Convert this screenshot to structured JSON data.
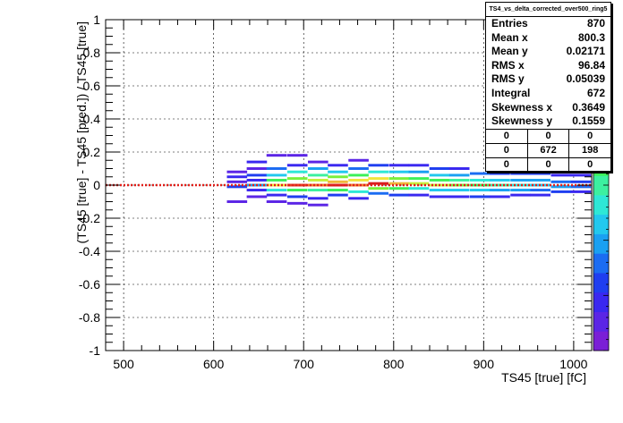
{
  "chart_data": {
    "type": "heatmap",
    "title": "",
    "xlabel": "TS45 [true] [fC]",
    "ylabel": "(TS45 [true] - TS45 [pred.]) / TS45 [true]",
    "xlim": [
      480,
      1020
    ],
    "ylim": [
      -1,
      1
    ],
    "x_ticks": [
      {
        "v": 500,
        "label": "500"
      },
      {
        "v": 600,
        "label": "600"
      },
      {
        "v": 700,
        "label": "700"
      },
      {
        "v": 800,
        "label": "800"
      },
      {
        "v": 900,
        "label": "900"
      },
      {
        "v": 1000,
        "label": "1000"
      }
    ],
    "y_ticks": [
      {
        "v": 1,
        "label": "1"
      },
      {
        "v": 0.8,
        "label": "0.8"
      },
      {
        "v": 0.6,
        "label": "0.6"
      },
      {
        "v": 0.4,
        "label": "0.4"
      },
      {
        "v": 0.2,
        "label": "0.2"
      },
      {
        "v": 0,
        "label": "0"
      },
      {
        "v": -0.2,
        "label": "-0.2"
      },
      {
        "v": -0.4,
        "label": "-0.4"
      },
      {
        "v": -0.6,
        "label": "-0.6"
      },
      {
        "v": -0.8,
        "label": "-0.8"
      },
      {
        "v": -1,
        "label": "-1"
      }
    ],
    "grid": true,
    "reference_line": {
      "y": 0,
      "color": "#e0201b",
      "style": "dotted"
    },
    "bin_width_x": 22.5,
    "bin_height_y": 0.016,
    "colors": [
      "#7a1fd6",
      "#5b25e6",
      "#3a28f0",
      "#1f3ef0",
      "#1b6cf2",
      "#1aa0f2",
      "#22c8ee",
      "#2ee8d6",
      "#3cf0a0",
      "#3cf05a",
      "#7af03c",
      "#c8f03c",
      "#f0e63c",
      "#f0b83c",
      "#f07c2a",
      "#e63c1f",
      "#d81e1e"
    ],
    "bins": [
      {
        "x": 626,
        "y": 0.08,
        "c": 1
      },
      {
        "x": 626,
        "y": 0.05,
        "c": 2
      },
      {
        "x": 626,
        "y": 0.02,
        "c": 1
      },
      {
        "x": 626,
        "y": -0.01,
        "c": 3
      },
      {
        "x": 626,
        "y": -0.1,
        "c": 1
      },
      {
        "x": 648,
        "y": 0.14,
        "c": 2
      },
      {
        "x": 648,
        "y": 0.1,
        "c": 1
      },
      {
        "x": 648,
        "y": 0.06,
        "c": 3
      },
      {
        "x": 648,
        "y": 0.03,
        "c": 2
      },
      {
        "x": 648,
        "y": 0.0,
        "c": 5
      },
      {
        "x": 648,
        "y": -0.03,
        "c": 2
      },
      {
        "x": 648,
        "y": -0.07,
        "c": 1
      },
      {
        "x": 670,
        "y": 0.18,
        "c": 1
      },
      {
        "x": 670,
        "y": 0.1,
        "c": 4
      },
      {
        "x": 670,
        "y": 0.06,
        "c": 6
      },
      {
        "x": 670,
        "y": 0.03,
        "c": 9
      },
      {
        "x": 670,
        "y": 0.0,
        "c": 12
      },
      {
        "x": 670,
        "y": -0.03,
        "c": 7
      },
      {
        "x": 670,
        "y": -0.06,
        "c": 2
      },
      {
        "x": 670,
        "y": -0.1,
        "c": 1
      },
      {
        "x": 693,
        "y": 0.18,
        "c": 1
      },
      {
        "x": 693,
        "y": 0.12,
        "c": 2
      },
      {
        "x": 693,
        "y": 0.08,
        "c": 7
      },
      {
        "x": 693,
        "y": 0.04,
        "c": 10
      },
      {
        "x": 693,
        "y": 0.0,
        "c": 15
      },
      {
        "x": 693,
        "y": -0.03,
        "c": 9
      },
      {
        "x": 693,
        "y": -0.07,
        "c": 3
      },
      {
        "x": 693,
        "y": -0.11,
        "c": 1
      },
      {
        "x": 716,
        "y": 0.14,
        "c": 1
      },
      {
        "x": 716,
        "y": 0.1,
        "c": 5
      },
      {
        "x": 716,
        "y": 0.06,
        "c": 8
      },
      {
        "x": 716,
        "y": 0.03,
        "c": 11
      },
      {
        "x": 716,
        "y": 0.0,
        "c": 14
      },
      {
        "x": 716,
        "y": -0.03,
        "c": 8
      },
      {
        "x": 716,
        "y": -0.08,
        "c": 2
      },
      {
        "x": 716,
        "y": -0.12,
        "c": 1
      },
      {
        "x": 738,
        "y": 0.12,
        "c": 2
      },
      {
        "x": 738,
        "y": 0.08,
        "c": 6
      },
      {
        "x": 738,
        "y": 0.05,
        "c": 10
      },
      {
        "x": 738,
        "y": 0.02,
        "c": 13
      },
      {
        "x": 738,
        "y": 0.0,
        "c": 16
      },
      {
        "x": 738,
        "y": -0.03,
        "c": 9
      },
      {
        "x": 738,
        "y": -0.06,
        "c": 3
      },
      {
        "x": 761,
        "y": 0.15,
        "c": 1
      },
      {
        "x": 761,
        "y": 0.1,
        "c": 4
      },
      {
        "x": 761,
        "y": 0.06,
        "c": 9
      },
      {
        "x": 761,
        "y": 0.03,
        "c": 12
      },
      {
        "x": 761,
        "y": 0.0,
        "c": 14
      },
      {
        "x": 761,
        "y": -0.04,
        "c": 7
      },
      {
        "x": 761,
        "y": -0.08,
        "c": 2
      },
      {
        "x": 783,
        "y": 0.12,
        "c": 3
      },
      {
        "x": 783,
        "y": 0.08,
        "c": 7
      },
      {
        "x": 783,
        "y": 0.04,
        "c": 12
      },
      {
        "x": 783,
        "y": 0.01,
        "c": 16
      },
      {
        "x": 783,
        "y": -0.02,
        "c": 10
      },
      {
        "x": 783,
        "y": -0.05,
        "c": 4
      },
      {
        "x": 806,
        "y": 0.12,
        "c": 2
      },
      {
        "x": 806,
        "y": 0.08,
        "c": 6
      },
      {
        "x": 806,
        "y": 0.04,
        "c": 10
      },
      {
        "x": 806,
        "y": 0.01,
        "c": 13
      },
      {
        "x": 806,
        "y": -0.02,
        "c": 9
      },
      {
        "x": 806,
        "y": -0.06,
        "c": 3
      },
      {
        "x": 828,
        "y": 0.12,
        "c": 2
      },
      {
        "x": 828,
        "y": 0.08,
        "c": 5
      },
      {
        "x": 828,
        "y": 0.04,
        "c": 9
      },
      {
        "x": 828,
        "y": 0.01,
        "c": 11
      },
      {
        "x": 828,
        "y": -0.02,
        "c": 7
      },
      {
        "x": 828,
        "y": -0.06,
        "c": 2
      },
      {
        "x": 851,
        "y": 0.1,
        "c": 3
      },
      {
        "x": 851,
        "y": 0.06,
        "c": 6
      },
      {
        "x": 851,
        "y": 0.03,
        "c": 9
      },
      {
        "x": 851,
        "y": 0.0,
        "c": 11
      },
      {
        "x": 851,
        "y": -0.03,
        "c": 6
      },
      {
        "x": 851,
        "y": -0.07,
        "c": 2
      },
      {
        "x": 873,
        "y": 0.1,
        "c": 2
      },
      {
        "x": 873,
        "y": 0.06,
        "c": 5
      },
      {
        "x": 873,
        "y": 0.03,
        "c": 8
      },
      {
        "x": 873,
        "y": 0.0,
        "c": 10
      },
      {
        "x": 873,
        "y": -0.03,
        "c": 6
      },
      {
        "x": 873,
        "y": -0.07,
        "c": 2
      },
      {
        "x": 896,
        "y": 0.07,
        "c": 4
      },
      {
        "x": 896,
        "y": 0.03,
        "c": 7
      },
      {
        "x": 896,
        "y": 0.0,
        "c": 9
      },
      {
        "x": 896,
        "y": -0.03,
        "c": 6
      },
      {
        "x": 896,
        "y": -0.07,
        "c": 3
      },
      {
        "x": 918,
        "y": 0.07,
        "c": 3
      },
      {
        "x": 918,
        "y": 0.03,
        "c": 6
      },
      {
        "x": 918,
        "y": 0.0,
        "c": 8
      },
      {
        "x": 918,
        "y": -0.03,
        "c": 5
      },
      {
        "x": 918,
        "y": -0.07,
        "c": 2
      },
      {
        "x": 941,
        "y": 0.07,
        "c": 3
      },
      {
        "x": 941,
        "y": 0.03,
        "c": 5
      },
      {
        "x": 941,
        "y": 0.0,
        "c": 7
      },
      {
        "x": 941,
        "y": -0.03,
        "c": 5
      },
      {
        "x": 941,
        "y": -0.06,
        "c": 2
      },
      {
        "x": 963,
        "y": 0.07,
        "c": 3
      },
      {
        "x": 963,
        "y": 0.03,
        "c": 5
      },
      {
        "x": 963,
        "y": 0.0,
        "c": 6
      },
      {
        "x": 963,
        "y": -0.03,
        "c": 4
      },
      {
        "x": 963,
        "y": -0.06,
        "c": 2
      },
      {
        "x": 986,
        "y": 0.06,
        "c": 2
      },
      {
        "x": 986,
        "y": 0.02,
        "c": 4
      },
      {
        "x": 986,
        "y": -0.01,
        "c": 5
      },
      {
        "x": 986,
        "y": -0.04,
        "c": 3
      },
      {
        "x": 1008,
        "y": 0.06,
        "c": 2
      },
      {
        "x": 1008,
        "y": 0.02,
        "c": 3
      },
      {
        "x": 1008,
        "y": -0.01,
        "c": 4
      },
      {
        "x": 1008,
        "y": -0.04,
        "c": 2
      }
    ],
    "stats_box": {
      "title": "TS4_vs_delta_corrected_over500_ring5",
      "rows": [
        {
          "label": "Entries",
          "value": "870"
        },
        {
          "label": "Mean x",
          "value": "800.3"
        },
        {
          "label": "Mean y",
          "value": "0.02171"
        },
        {
          "label": "RMS x",
          "value": "96.84"
        },
        {
          "label": "RMS y",
          "value": "0.05039"
        },
        {
          "label": "Integral",
          "value": "672"
        },
        {
          "label": "Skewness x",
          "value": "0.3649"
        },
        {
          "label": "Skewness y",
          "value": "0.1559"
        }
      ],
      "grid": [
        [
          "0",
          "0",
          "0"
        ],
        [
          "0",
          "672",
          "198"
        ],
        [
          "0",
          "0",
          "0"
        ]
      ]
    }
  }
}
